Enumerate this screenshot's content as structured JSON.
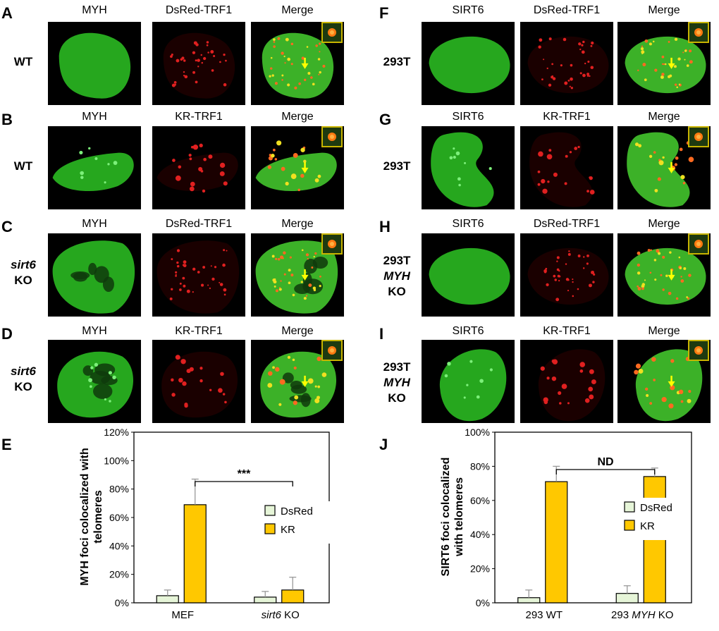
{
  "left": {
    "rows": [
      {
        "letter": "A",
        "label": [
          "WT"
        ],
        "headers": [
          "MYH",
          "DsRed-TRF1",
          "Merge"
        ],
        "kind": "dsred",
        "nucleus": "oval"
      },
      {
        "letter": "B",
        "label": [
          "WT"
        ],
        "headers": [
          "MYH",
          "KR-TRF1",
          "Merge"
        ],
        "kind": "kr",
        "nucleus": "flat"
      },
      {
        "letter": "C",
        "label": [
          "sirt6",
          "KO"
        ],
        "headers": [
          "MYH",
          "DsRed-TRF1",
          "Merge"
        ],
        "kind": "dsred",
        "nucleus": "blobby"
      },
      {
        "letter": "D",
        "label": [
          "sirt6",
          "KO"
        ],
        "headers": [
          "MYH",
          "KR-TRF1",
          "Merge"
        ],
        "kind": "kr",
        "nucleus": "blobby2"
      }
    ]
  },
  "right": {
    "rows": [
      {
        "letter": "F",
        "label": [
          "293T"
        ],
        "headers": [
          "SIRT6",
          "DsRed-TRF1",
          "Merge"
        ],
        "kind": "dsred",
        "nucleus": "round"
      },
      {
        "letter": "G",
        "label": [
          "293T"
        ],
        "headers": [
          "SIRT6",
          "KR-TRF1",
          "Merge"
        ],
        "kind": "kr",
        "nucleus": "bean"
      },
      {
        "letter": "H",
        "label": [
          "293T",
          "MYH",
          "KO"
        ],
        "headers": [
          "SIRT6",
          "DsRed-TRF1",
          "Merge"
        ],
        "kind": "dsred",
        "nucleus": "round"
      },
      {
        "letter": "I",
        "label": [
          "293T",
          "MYH",
          "KO"
        ],
        "headers": [
          "SIRT6",
          "KR-TRF1",
          "Merge"
        ],
        "kind": "kr",
        "nucleus": "oval2"
      }
    ]
  },
  "colors": {
    "green": "#22c01a",
    "red": "#e02020",
    "yellow": "#f0e020",
    "kr_bar": "#ffc800",
    "dsred_bar": "#e6f5d8"
  },
  "chart_data": [
    {
      "panel": "E",
      "type": "bar",
      "categories": [
        "MEF",
        "sirt6 KO"
      ],
      "category_italic": [
        "",
        "sirt6"
      ],
      "series": [
        {
          "name": "DsRed",
          "values": [
            5,
            4
          ],
          "errors": [
            4,
            4
          ]
        },
        {
          "name": "KR",
          "values": [
            69,
            9
          ],
          "errors": [
            18,
            9
          ]
        }
      ],
      "ylabel": "MYH foci colocalized with telomeres",
      "ylim": [
        0,
        120
      ],
      "yticks": [
        "0%",
        "20%",
        "40%",
        "60%",
        "80%",
        "100%",
        "120%"
      ],
      "significance": "***"
    },
    {
      "panel": "J",
      "type": "bar",
      "categories": [
        "293 WT",
        "293 MYH KO"
      ],
      "category_italic": [
        "",
        "MYH"
      ],
      "series": [
        {
          "name": "DsRed",
          "values": [
            3,
            5.5
          ],
          "errors": [
            4.5,
            4.5
          ]
        },
        {
          "name": "KR",
          "values": [
            71,
            74
          ],
          "errors": [
            9,
            5
          ]
        }
      ],
      "ylabel": "SIRT6 foci colocalized with telomeres",
      "ylim": [
        0,
        100
      ],
      "yticks": [
        "0%",
        "20%",
        "40%",
        "60%",
        "80%",
        "100%"
      ],
      "significance": "ND"
    }
  ]
}
